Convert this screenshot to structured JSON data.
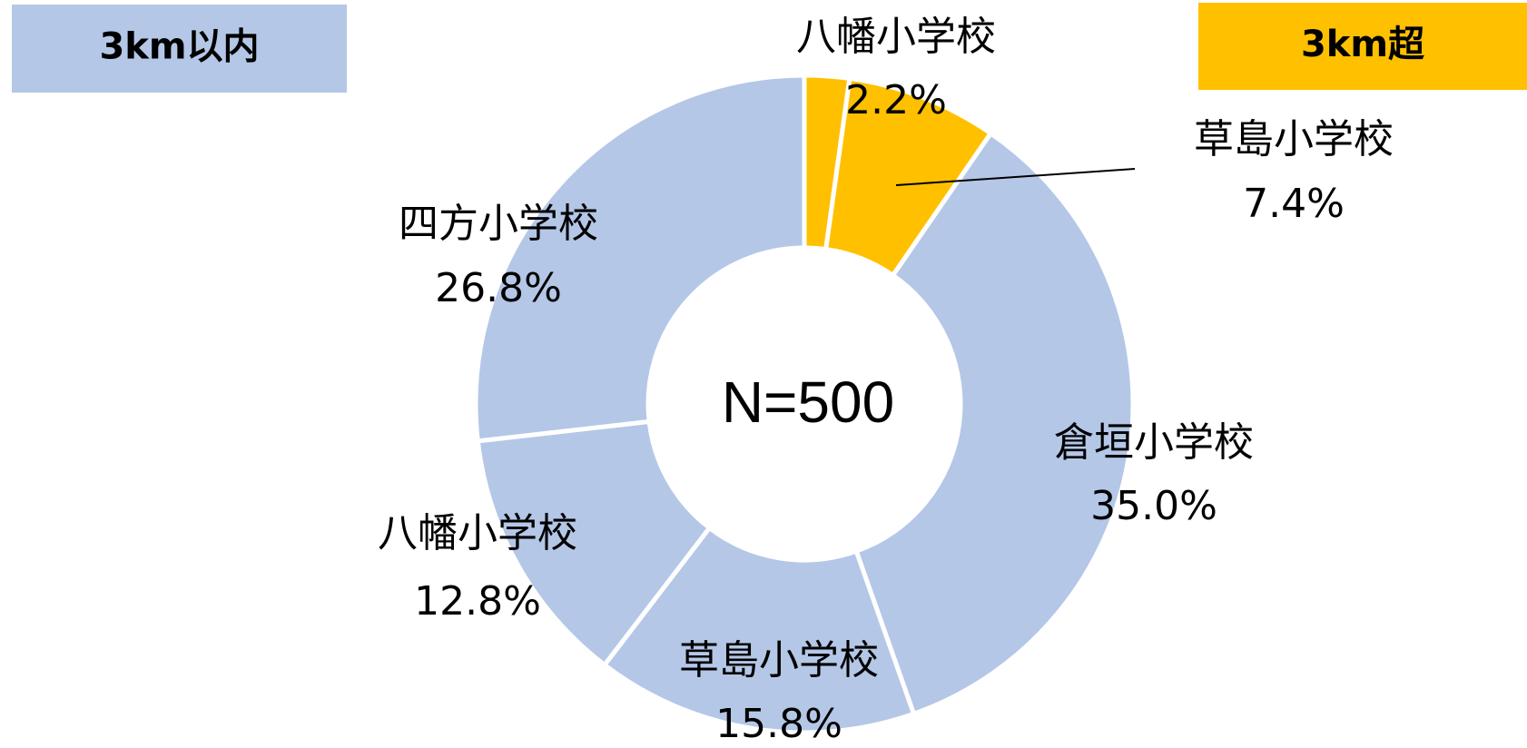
{
  "chart_data": {
    "type": "donut",
    "categories": [
      "八幡小学校",
      "草島小学校",
      "倉垣小学校",
      "草島小学校",
      "八幡小学校",
      "四方小学校"
    ],
    "values": [
      2.2,
      7.4,
      35.0,
      15.8,
      12.8,
      26.8
    ],
    "value_labels": [
      "2.2%",
      "7.4%",
      "35.0%",
      "15.8%",
      "12.8%",
      "26.8%"
    ],
    "colors": [
      "#ffc000",
      "#ffc000",
      "#b4c7e7",
      "#b4c7e7",
      "#b4c7e7",
      "#b4c7e7"
    ],
    "center_label": "N=500",
    "legend": [
      {
        "label": "3km以内",
        "color": "#b4c7e7"
      },
      {
        "label": "3km超",
        "color": "#ffc000"
      }
    ]
  }
}
